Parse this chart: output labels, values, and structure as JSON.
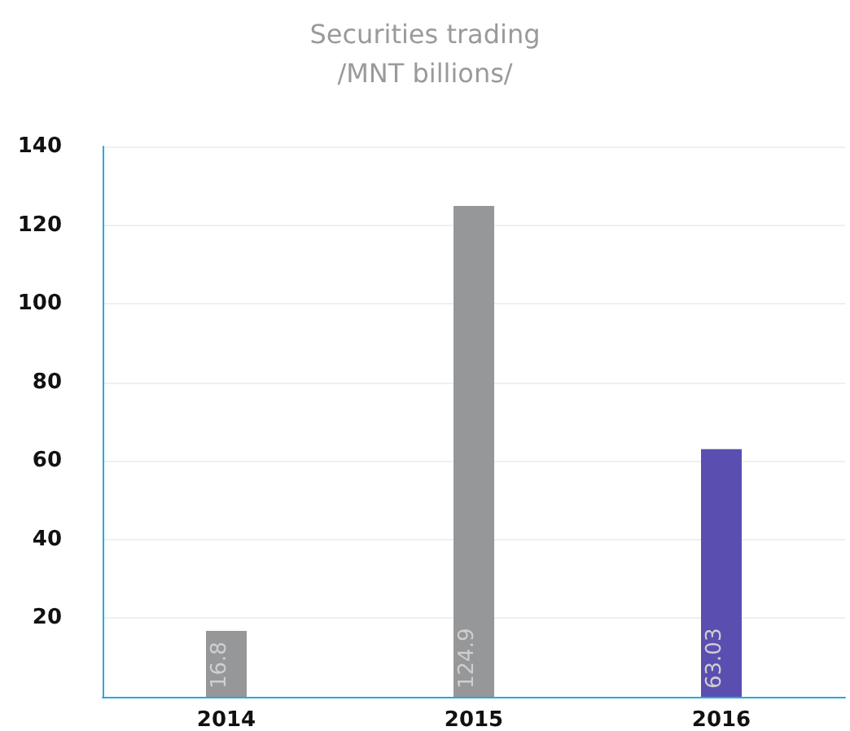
{
  "chart_data": {
    "type": "bar",
    "title": "Securities trading",
    "subtitle": "/MNT billions/",
    "categories": [
      "2014",
      "2015",
      "2016"
    ],
    "colors": [
      "#969798",
      "#969798",
      "#5a4fb0"
    ],
    "values": [
      16.8,
      124.9,
      63.03
    ],
    "data_labels": true,
    "ylim": [
      0,
      140
    ],
    "yticks": [
      {
        "value": 0,
        "label": null
      },
      20,
      40,
      60,
      80,
      100,
      120,
      140
    ],
    "grid": "y"
  }
}
